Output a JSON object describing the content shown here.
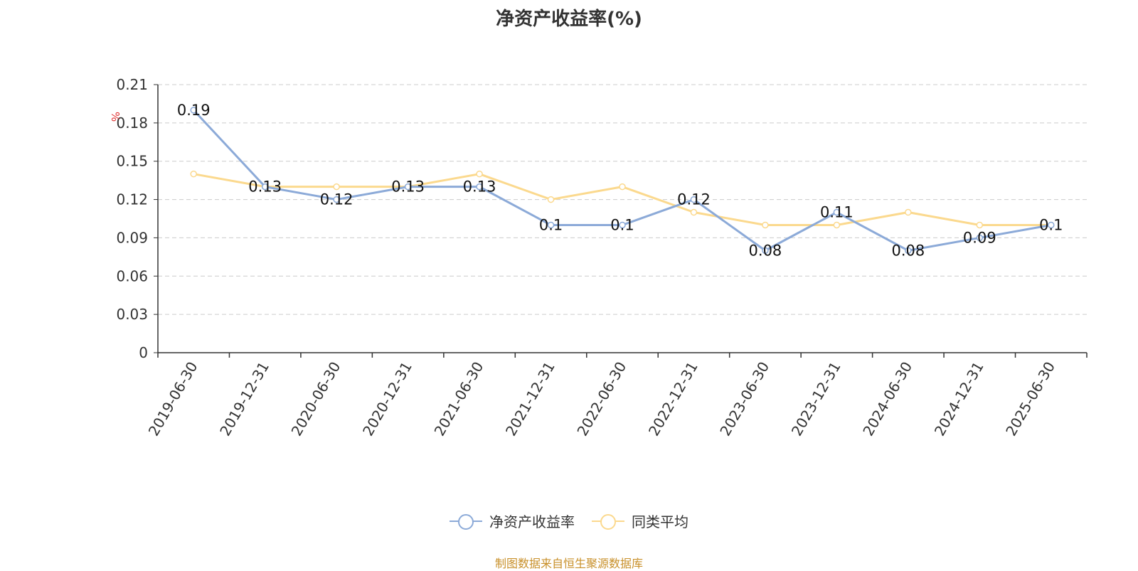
{
  "title": "净资产收益率(%)",
  "source_note": "制图数据来自恒生聚源数据库",
  "chart_data": {
    "type": "line",
    "title": "净资产收益率(%)",
    "ylabel": "%",
    "ylim": [
      0,
      0.21
    ],
    "yticks": [
      "0",
      "0.03",
      "0.06",
      "0.09",
      "0.12",
      "0.15",
      "0.18",
      "0.21"
    ],
    "grid": true,
    "legend_position": "bottom-center",
    "categories": [
      "2019-06-30",
      "2019-12-31",
      "2020-06-30",
      "2020-12-31",
      "2021-06-30",
      "2021-12-31",
      "2022-06-30",
      "2022-12-31",
      "2023-06-30",
      "2023-12-31",
      "2024-06-30",
      "2024-12-31",
      "2025-06-30"
    ],
    "series": [
      {
        "name": "净资产收益率",
        "color": "#8caad8",
        "values": [
          0.19,
          0.13,
          0.12,
          0.13,
          0.13,
          0.1,
          0.1,
          0.12,
          0.08,
          0.11,
          0.08,
          0.09,
          0.1
        ],
        "labels": [
          "0.19",
          "0.13",
          "0.12",
          "0.13",
          "0.13",
          "0.1",
          "0.1",
          "0.12",
          "0.08",
          "0.11",
          "0.08",
          "0.09",
          "0.1"
        ]
      },
      {
        "name": "同类平均",
        "color": "#fbd98e",
        "values": [
          0.14,
          0.13,
          0.13,
          0.13,
          0.14,
          0.12,
          0.13,
          0.11,
          0.1,
          0.1,
          0.11,
          0.1,
          0.1
        ]
      }
    ]
  }
}
